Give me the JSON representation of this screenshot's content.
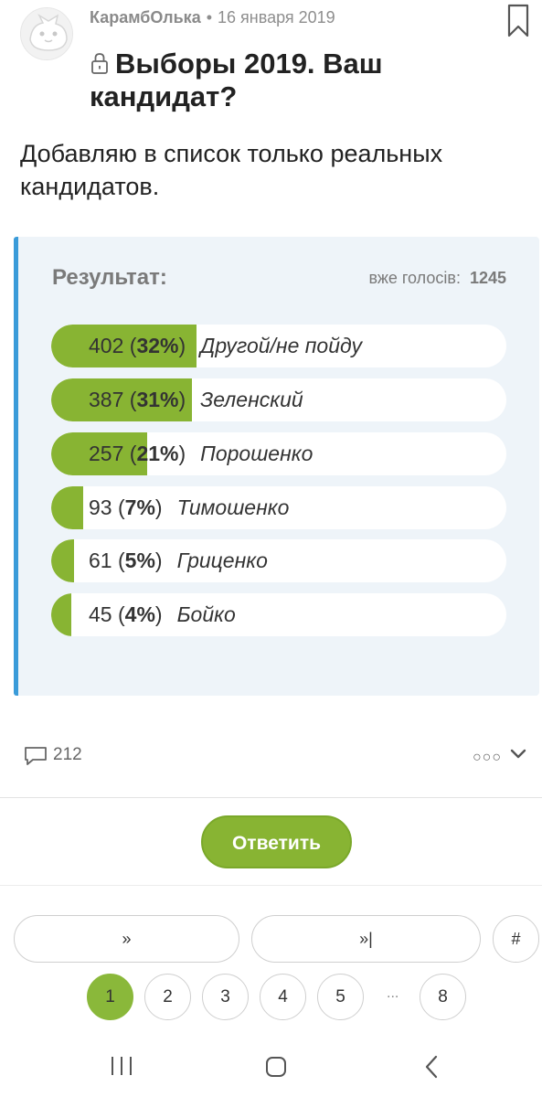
{
  "post": {
    "author": "КарамбОлька",
    "separator": "•",
    "date": "16 января 2019",
    "title": "Выборы 2019. Ваш кандидат?",
    "description": "Добавляю в список только реальных кандидатов."
  },
  "poll": {
    "result_label": "Результат:",
    "total_label": "вже голосів:",
    "total_count": "1245",
    "accent_color": "#88b433",
    "options": [
      {
        "count": "402",
        "percent": "32%",
        "name": "Другой/не пойду",
        "fraction": 0.32
      },
      {
        "count": "387",
        "percent": "31%",
        "name": "Зеленский",
        "fraction": 0.31
      },
      {
        "count": "257",
        "percent": "21%",
        "name": "Порошенко",
        "fraction": 0.21
      },
      {
        "count": "93",
        "percent": "7%",
        "name": "Тимошенко",
        "fraction": 0.07
      },
      {
        "count": "61",
        "percent": "5%",
        "name": "Гриценко",
        "fraction": 0.05
      },
      {
        "count": "45",
        "percent": "4%",
        "name": "Бойко",
        "fraction": 0.04
      }
    ]
  },
  "actions": {
    "comment_count": "212",
    "more_icon": "more-icon",
    "expand_icon": "chevron-down-icon"
  },
  "reply_button": "Ответить",
  "pagination": {
    "next_label": "»",
    "last_label": "»|",
    "goto_label": "#",
    "pages": [
      "1",
      "2",
      "3",
      "4",
      "5"
    ],
    "ellipsis": "...",
    "last_page": "8",
    "current": "1"
  },
  "system_nav": {
    "recent_icon": "recent-apps-icon",
    "home_icon": "home-icon",
    "back_icon": "back-icon"
  }
}
